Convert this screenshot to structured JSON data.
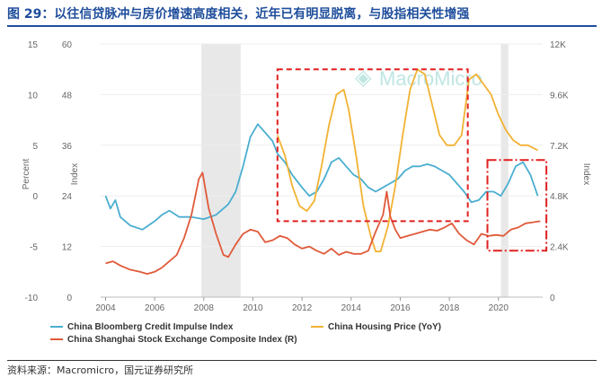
{
  "figure": {
    "title": "图 29：以往信贷脉冲与房价增速高度相关，近年已有明显脱离，与股指相关性增强",
    "source": "资料来源：Macromicro，国元证券研究所",
    "watermark": "MacroMicro"
  },
  "chart_data": {
    "type": "line",
    "title": "",
    "x_range": [
      2003.8,
      2021.8
    ],
    "x_ticks": [
      "2004",
      "2006",
      "2008",
      "2010",
      "2012",
      "2014",
      "2016",
      "2018",
      "2020"
    ],
    "axes": {
      "percent": {
        "label": "Percent",
        "range": [
          -10,
          15
        ],
        "ticks": [
          "-10",
          "-5",
          "0",
          "5",
          "10",
          "15"
        ]
      },
      "index": {
        "label": "Index",
        "range": [
          0,
          60
        ],
        "ticks": [
          "0",
          "12",
          "24",
          "36",
          "48",
          "60"
        ]
      },
      "index_right": {
        "label": "Index",
        "range": [
          0,
          12000
        ],
        "ticks": [
          "0",
          "2.4K",
          "4.8K",
          "7.2K",
          "9.6K",
          "12K"
        ]
      }
    },
    "shaded_periods": [
      [
        2007.9,
        2009.5
      ],
      [
        2020.1,
        2020.4
      ]
    ],
    "series": [
      {
        "name": "China Bloomberg Credit Impulse Index",
        "axis": "index",
        "color": "#4aaed0",
        "x": [
          2004.0,
          2004.2,
          2004.4,
          2004.6,
          2005.0,
          2005.5,
          2006.0,
          2006.3,
          2006.6,
          2007.0,
          2007.5,
          2008.0,
          2008.5,
          2009.0,
          2009.3,
          2009.6,
          2009.9,
          2010.2,
          2010.5,
          2010.8,
          2011.0,
          2011.3,
          2011.6,
          2012.0,
          2012.3,
          2012.6,
          2012.9,
          2013.2,
          2013.5,
          2013.8,
          2014.1,
          2014.4,
          2014.7,
          2015.0,
          2015.3,
          2015.6,
          2015.9,
          2016.2,
          2016.5,
          2016.8,
          2017.1,
          2017.4,
          2017.7,
          2018.0,
          2018.3,
          2018.6,
          2018.9,
          2019.2,
          2019.5,
          2019.8,
          2020.1,
          2020.4,
          2020.7,
          2021.0,
          2021.3,
          2021.6
        ],
        "y": [
          24,
          21,
          23,
          19,
          17,
          16,
          18,
          19.5,
          20.5,
          19,
          19,
          18.5,
          19.5,
          22,
          25,
          31,
          38,
          41,
          39,
          37,
          34,
          32,
          29,
          26,
          24,
          25,
          28,
          32,
          33,
          31,
          29,
          28,
          26,
          25,
          26,
          27,
          28,
          30,
          31,
          31,
          31.5,
          31,
          30,
          29,
          27,
          25,
          22.5,
          23,
          25,
          25,
          24,
          27,
          31,
          32,
          29,
          24
        ]
      },
      {
        "name": "China Housing Price (YoY)",
        "axis": "percent",
        "color": "#f2b233",
        "x": [
          2011.0,
          2011.3,
          2011.6,
          2011.9,
          2012.2,
          2012.5,
          2012.8,
          2013.1,
          2013.4,
          2013.7,
          2013.9,
          2014.2,
          2014.5,
          2014.8,
          2015.0,
          2015.2,
          2015.5,
          2015.8,
          2016.1,
          2016.4,
          2016.7,
          2017.0,
          2017.3,
          2017.6,
          2017.9,
          2018.2,
          2018.5,
          2018.8,
          2019.1,
          2019.4,
          2019.7,
          2020.0,
          2020.3,
          2020.6,
          2020.9,
          2021.2,
          2021.6
        ],
        "y": [
          6,
          4,
          1,
          -1,
          -1.5,
          -0.5,
          3,
          7,
          10,
          10.5,
          8.5,
          4,
          -1,
          -4,
          -5.5,
          -5.5,
          -3,
          1,
          6,
          10.5,
          12.5,
          12,
          9,
          6,
          5,
          5,
          6,
          11.5,
          12,
          11,
          10,
          8,
          6.5,
          5.5,
          5,
          5,
          4.5
        ]
      },
      {
        "name": "China Shanghai Stock Exchange Composite Index (R)",
        "axis": "index_right",
        "color": "#e05a3a",
        "x": [
          2004.0,
          2004.3,
          2004.6,
          2005.0,
          2005.4,
          2005.7,
          2006.0,
          2006.3,
          2006.6,
          2006.9,
          2007.2,
          2007.5,
          2007.8,
          2007.95,
          2008.2,
          2008.5,
          2008.8,
          2009.0,
          2009.3,
          2009.6,
          2009.9,
          2010.2,
          2010.5,
          2010.8,
          2011.1,
          2011.4,
          2011.7,
          2012.0,
          2012.3,
          2012.6,
          2012.9,
          2013.2,
          2013.5,
          2013.8,
          2014.1,
          2014.4,
          2014.7,
          2015.0,
          2015.3,
          2015.45,
          2015.6,
          2015.8,
          2016.0,
          2016.3,
          2016.6,
          2016.9,
          2017.2,
          2017.5,
          2017.8,
          2018.1,
          2018.4,
          2018.7,
          2019.0,
          2019.3,
          2019.6,
          2019.9,
          2020.2,
          2020.5,
          2020.8,
          2021.1,
          2021.4,
          2021.7
        ],
        "y": [
          1600,
          1700,
          1500,
          1300,
          1200,
          1100,
          1200,
          1400,
          1700,
          2000,
          2800,
          3900,
          5600,
          5900,
          4200,
          3000,
          2000,
          1900,
          2500,
          3000,
          3200,
          3100,
          2600,
          2700,
          2900,
          2800,
          2500,
          2300,
          2400,
          2200,
          2050,
          2300,
          2000,
          2150,
          2050,
          2050,
          2200,
          3100,
          3900,
          5000,
          3800,
          3200,
          2800,
          2900,
          3000,
          3100,
          3200,
          3150,
          3300,
          3500,
          3000,
          2700,
          2500,
          3000,
          2900,
          2950,
          2900,
          3200,
          3300,
          3500,
          3550,
          3600
        ]
      }
    ],
    "legend": {
      "position": "bottom",
      "items": [
        {
          "label": "China Bloomberg Credit Impulse Index",
          "color": "#4aaed0"
        },
        {
          "label": "China Housing Price (YoY)",
          "color": "#f2b233"
        },
        {
          "label": "China Shanghai Stock Exchange Composite Index (R)",
          "color": "#e05a3a"
        }
      ]
    },
    "annotations": [
      {
        "type": "dashed-rect",
        "color": "#e02020",
        "x": [
          2011.0,
          2018.75
        ],
        "index_y": [
          18,
          54
        ]
      },
      {
        "type": "dashdot-rect",
        "color": "#e02020",
        "x": [
          2019.55,
          2021.95
        ],
        "index_y": [
          11,
          32.5
        ]
      }
    ]
  }
}
